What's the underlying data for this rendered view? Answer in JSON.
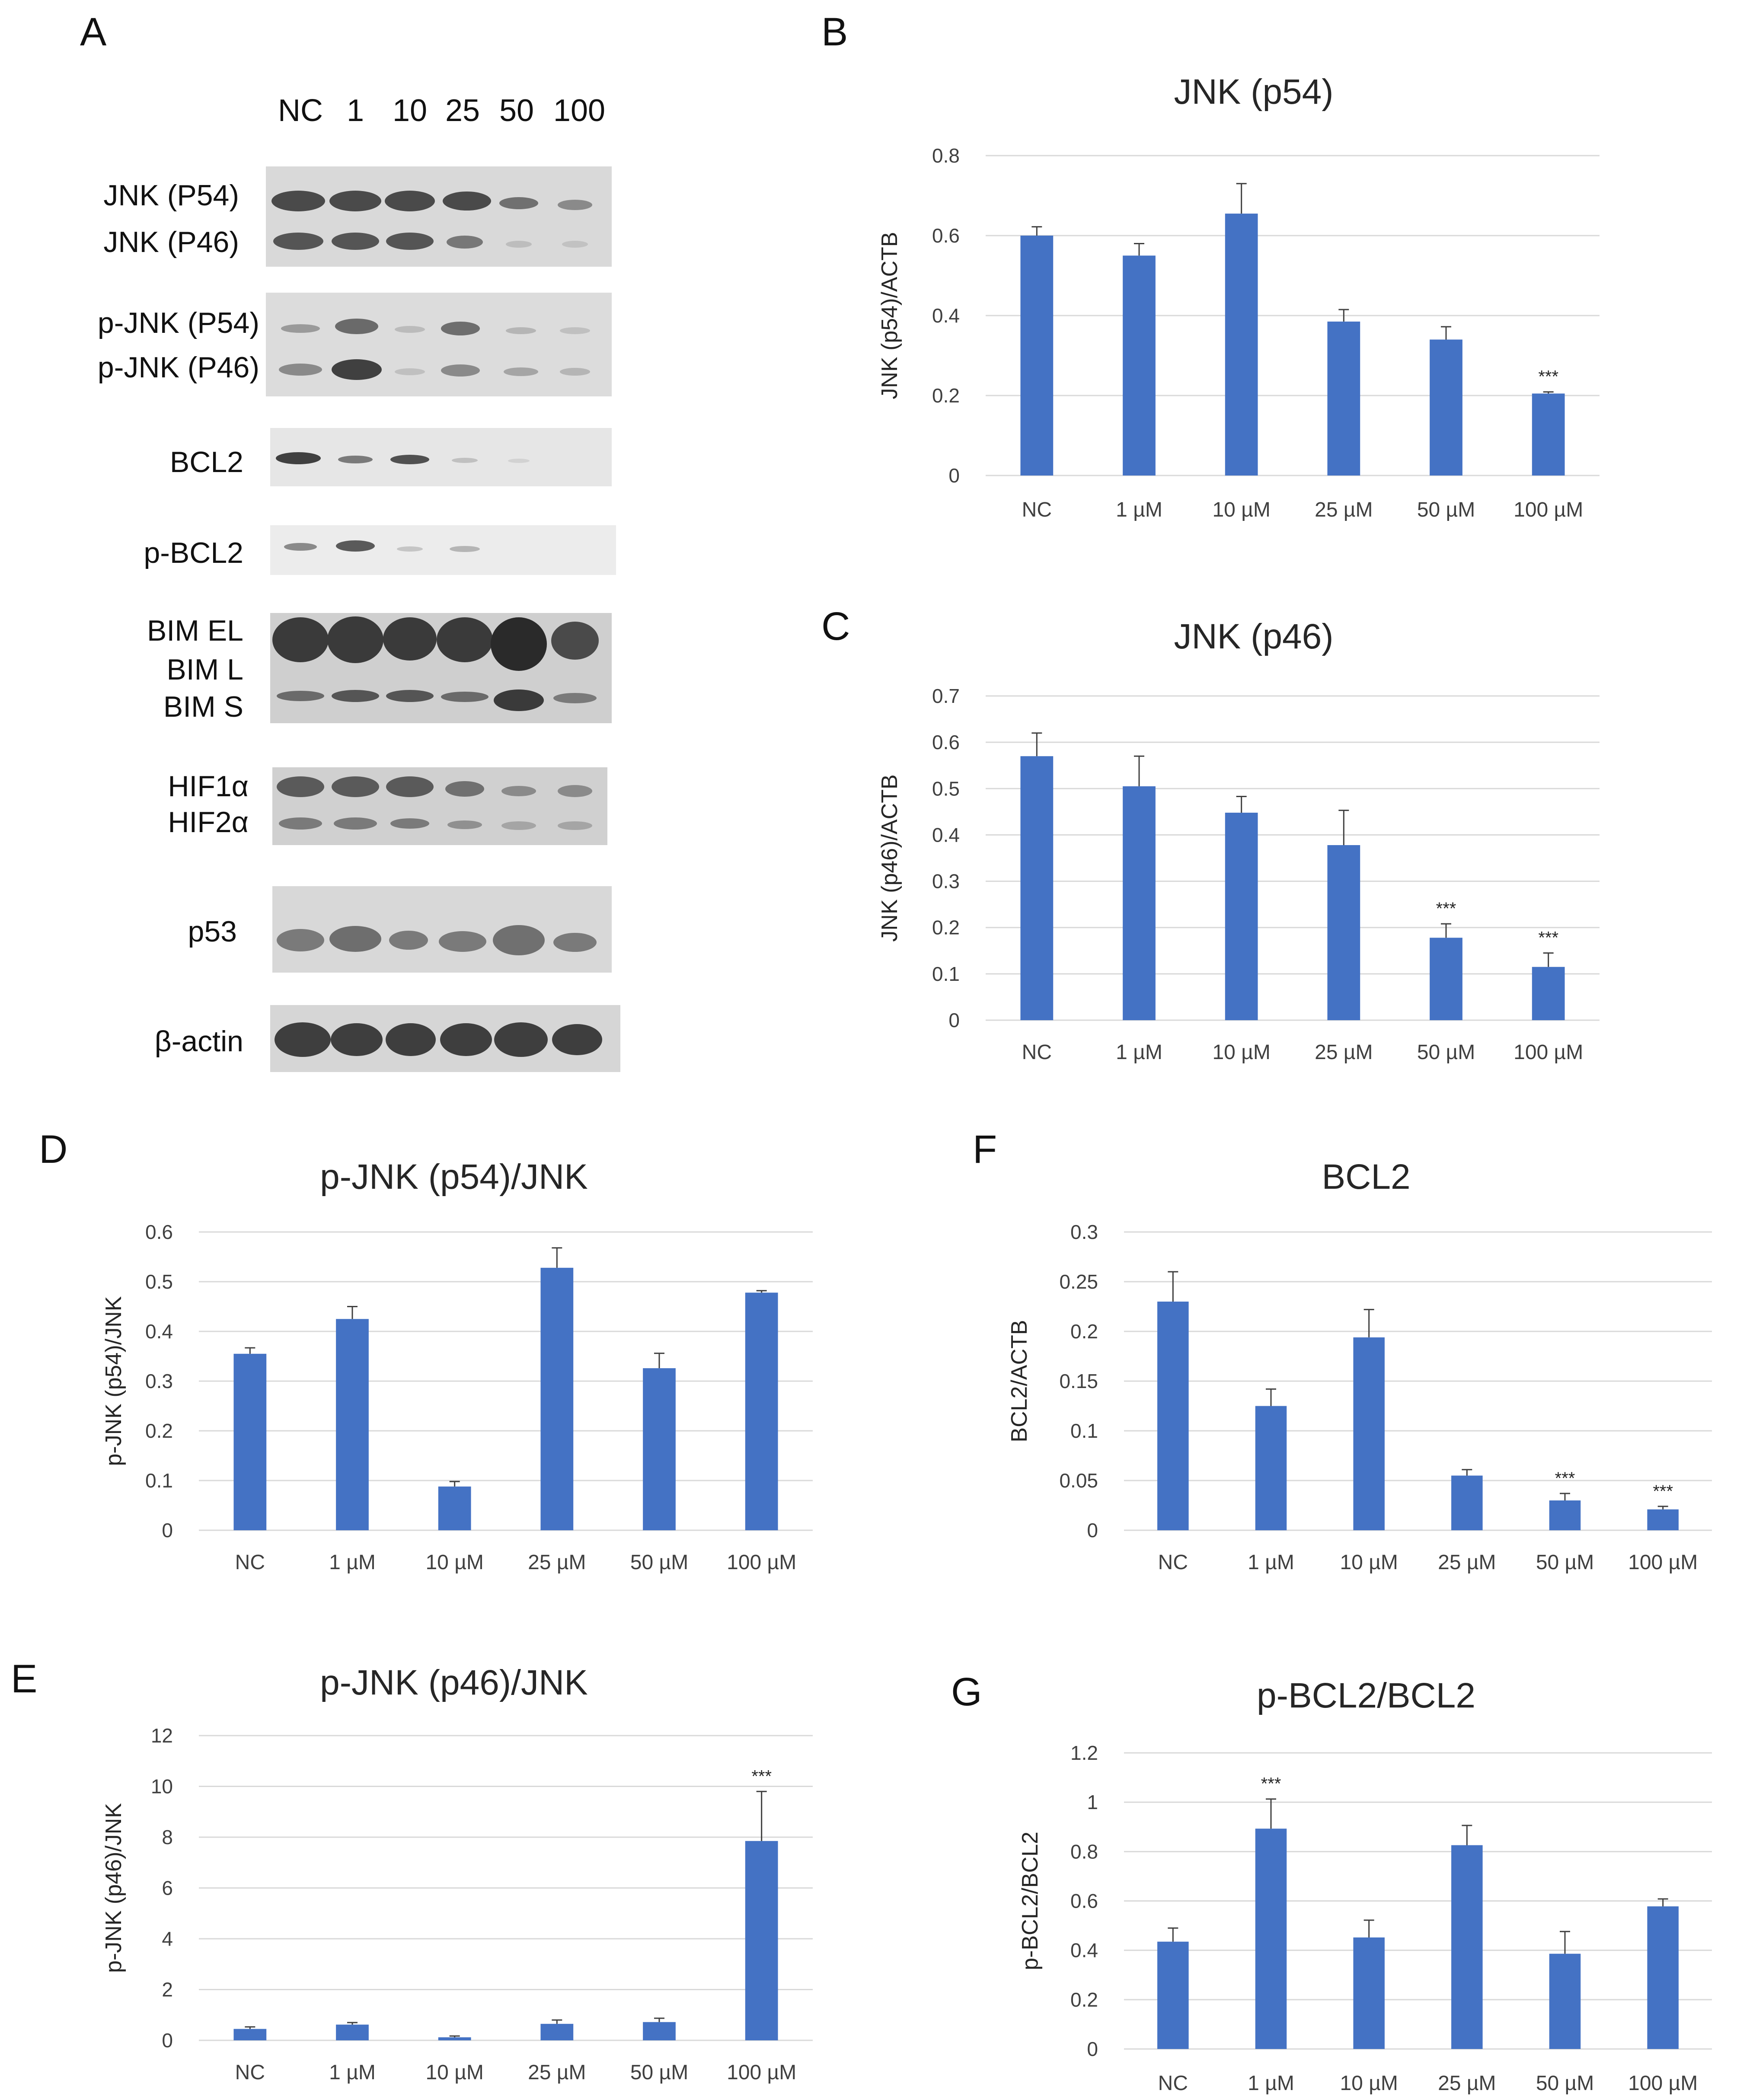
{
  "panel_labels": {
    "A": "A",
    "B": "B",
    "C": "C",
    "D": "D",
    "E": "E",
    "F": "F",
    "G": "G"
  },
  "blot": {
    "lane_labels": [
      "NC",
      "1",
      "10",
      "25",
      "50",
      "100"
    ],
    "band_labels": {
      "jnk": [
        "JNK (P54)",
        "JNK (P46)"
      ],
      "pjnk": [
        "p-JNK (P54)",
        "p-JNK (P46)"
      ],
      "bcl2": [
        "BCL2"
      ],
      "pbcl2": [
        "p-BCL2"
      ],
      "bim": [
        "BIM EL",
        "BIM L",
        "BIM S"
      ],
      "hif": [
        "HIF1α",
        "HIF2α"
      ],
      "p53": [
        "p53"
      ],
      "actin": [
        "β-actin"
      ]
    }
  },
  "colors": {
    "bar": "#4472C4",
    "grid": "#D9D9D9",
    "text": "#404040",
    "blot_bg": "#dcdcdc",
    "band": "#3a3a3a"
  },
  "significance_marker": "***",
  "chart_data": [
    {
      "id": "B",
      "type": "bar",
      "title": "JNK (p54)",
      "ylabel": "JNK (p54)/ACTB",
      "xlabel": "",
      "categories": [
        "NC",
        "1 µM",
        "10 µM",
        "25 µM",
        "50 µM",
        "100 µM"
      ],
      "values": [
        0.6,
        0.55,
        0.655,
        0.385,
        0.34,
        0.205
      ],
      "errors": [
        0.022,
        0.03,
        0.075,
        0.03,
        0.032,
        0.004
      ],
      "significant": [
        false,
        false,
        false,
        false,
        false,
        true
      ],
      "ylim": [
        0,
        0.8
      ],
      "yticks": [
        0,
        0.2,
        0.4,
        0.6,
        0.8
      ],
      "ytick_labels": [
        "0",
        "0.2",
        "0.4",
        "0.6",
        "0.8"
      ],
      "grid": true
    },
    {
      "id": "C",
      "type": "bar",
      "title": "JNK (p46)",
      "ylabel": "JNK (p46)/ACTB",
      "xlabel": "",
      "categories": [
        "NC",
        "1 µM",
        "10 µM",
        "25 µM",
        "50 µM",
        "100 µM"
      ],
      "values": [
        0.57,
        0.505,
        0.448,
        0.378,
        0.178,
        0.115
      ],
      "errors": [
        0.05,
        0.065,
        0.035,
        0.075,
        0.03,
        0.03
      ],
      "significant": [
        false,
        false,
        false,
        false,
        true,
        true
      ],
      "ylim": [
        0,
        0.7
      ],
      "yticks": [
        0,
        0.1,
        0.2,
        0.3,
        0.4,
        0.5,
        0.6,
        0.7
      ],
      "ytick_labels": [
        "0",
        "0.1",
        "0.2",
        "0.3",
        "0.4",
        "0.5",
        "0.6",
        "0.7"
      ],
      "grid": true
    },
    {
      "id": "D",
      "type": "bar",
      "title": "p-JNK (p54)/JNK",
      "ylabel": "p-JNK (p54)/JNK",
      "xlabel": "",
      "categories": [
        "NC",
        "1 µM",
        "10 µM",
        "25 µM",
        "50 µM",
        "100 µM"
      ],
      "values": [
        0.355,
        0.425,
        0.088,
        0.528,
        0.326,
        0.478
      ],
      "errors": [
        0.012,
        0.025,
        0.01,
        0.04,
        0.03,
        0.004
      ],
      "significant": [
        false,
        false,
        false,
        false,
        false,
        false
      ],
      "ylim": [
        0,
        0.6
      ],
      "yticks": [
        0,
        0.1,
        0.2,
        0.3,
        0.4,
        0.5,
        0.6
      ],
      "ytick_labels": [
        "0",
        "0.1",
        "0.2",
        "0.3",
        "0.4",
        "0.5",
        "0.6"
      ],
      "grid": true
    },
    {
      "id": "E",
      "type": "bar",
      "title": "p-JNK (p46)/JNK",
      "ylabel": "p-JNK (p46)/JNK",
      "xlabel": "",
      "categories": [
        "NC",
        "1 µM",
        "10 µM",
        "25 µM",
        "50 µM",
        "100 µM"
      ],
      "values": [
        0.45,
        0.62,
        0.12,
        0.65,
        0.72,
        7.85
      ],
      "errors": [
        0.08,
        0.08,
        0.05,
        0.15,
        0.15,
        1.95
      ],
      "significant": [
        false,
        false,
        false,
        false,
        false,
        true
      ],
      "ylim": [
        0,
        12
      ],
      "yticks": [
        0,
        2,
        4,
        6,
        8,
        10,
        12
      ],
      "ytick_labels": [
        "0",
        "2",
        "4",
        "6",
        "8",
        "10",
        "12"
      ],
      "grid": true
    },
    {
      "id": "F",
      "type": "bar",
      "title": "BCL2",
      "ylabel": "BCL2/ACTB",
      "xlabel": "",
      "categories": [
        "NC",
        "1 µM",
        "10 µM",
        "25 µM",
        "50 µM",
        "100 µM"
      ],
      "values": [
        0.23,
        0.125,
        0.194,
        0.055,
        0.03,
        0.021
      ],
      "errors": [
        0.03,
        0.017,
        0.028,
        0.006,
        0.007,
        0.003
      ],
      "significant": [
        false,
        false,
        false,
        false,
        true,
        true
      ],
      "ylim": [
        0,
        0.3
      ],
      "yticks": [
        0,
        0.05,
        0.1,
        0.15,
        0.2,
        0.25,
        0.3
      ],
      "ytick_labels": [
        "0",
        "0.05",
        "0.1",
        "0.15",
        "0.2",
        "0.25",
        "0.3"
      ],
      "grid": true
    },
    {
      "id": "G",
      "type": "bar",
      "title": "p-BCL2/BCL2",
      "ylabel": "p-BCL2/BCL2",
      "xlabel": "",
      "categories": [
        "NC",
        "1 µM",
        "10 µM",
        "25 µM",
        "50 µM",
        "100 µM"
      ],
      "values": [
        0.435,
        0.893,
        0.452,
        0.826,
        0.386,
        0.578
      ],
      "errors": [
        0.055,
        0.12,
        0.07,
        0.08,
        0.09,
        0.03
      ],
      "significant": [
        false,
        true,
        false,
        false,
        false,
        false
      ],
      "ylim": [
        0,
        1.2
      ],
      "yticks": [
        0,
        0.2,
        0.4,
        0.6,
        0.8,
        1,
        1.2
      ],
      "ytick_labels": [
        "0",
        "0.2",
        "0.4",
        "0.6",
        "0.8",
        "1",
        "1.2"
      ],
      "grid": true
    }
  ]
}
